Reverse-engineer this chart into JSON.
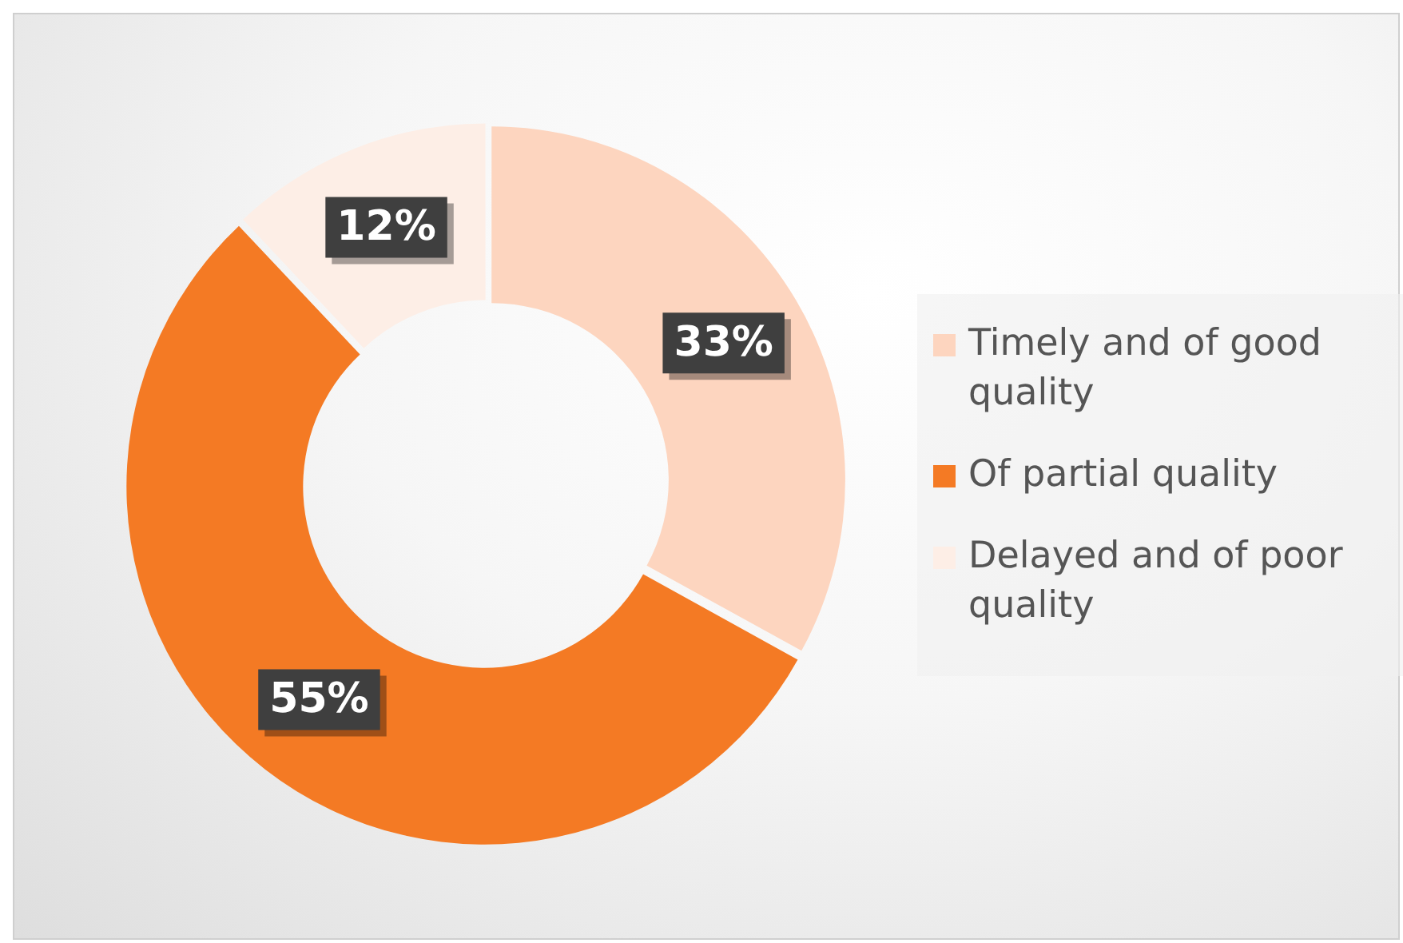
{
  "chart_data": {
    "type": "donut",
    "categories": [
      "Timely and of good quality",
      "Of partial quality",
      "Delayed and of poor quality"
    ],
    "values": [
      33,
      55,
      12
    ],
    "colors": [
      "#fdd5bf",
      "#f47a24",
      "#fdeee6"
    ],
    "value_labels": [
      "33%",
      "55%",
      "12%"
    ],
    "legend": "right"
  }
}
